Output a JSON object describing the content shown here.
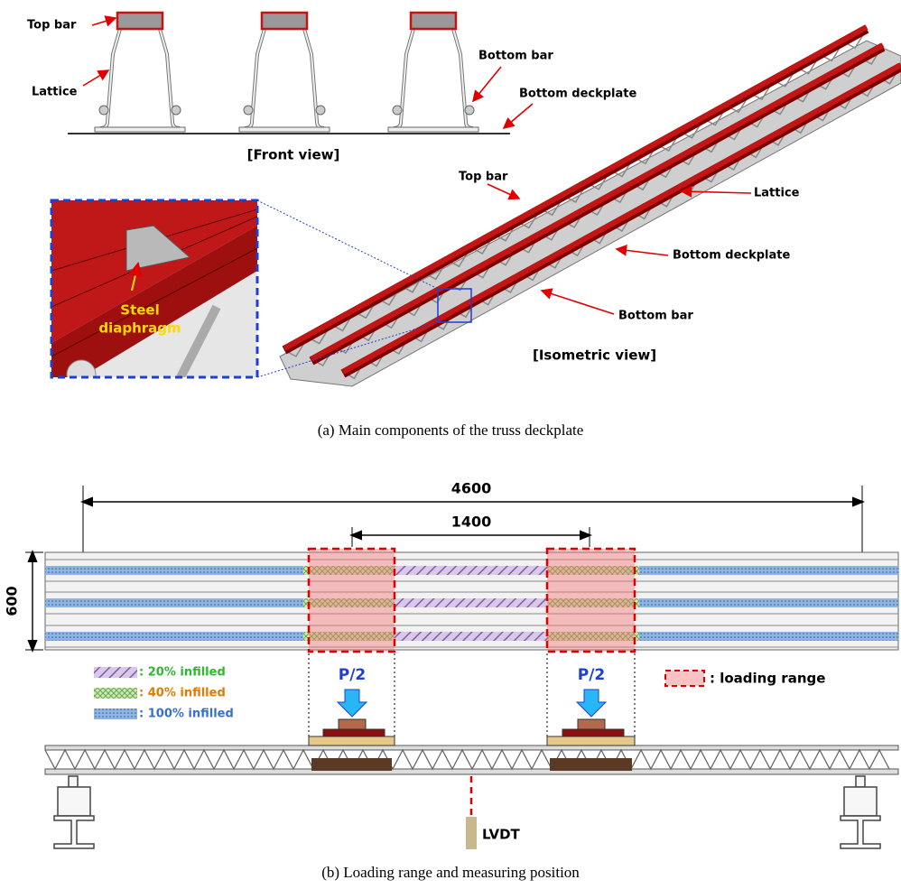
{
  "panel_a": {
    "front_labels": {
      "top_bar": "Top bar",
      "lattice": "Lattice",
      "bottom_bar": "Bottom bar",
      "bottom_deckplate": "Bottom deckplate"
    },
    "front_title": "[Front view]",
    "iso_labels": {
      "top_bar": "Top bar",
      "lattice": "Lattice",
      "bottom_deckplate": "Bottom deckplate",
      "bottom_bar": "Bottom bar"
    },
    "iso_title": "[Isometric view]",
    "detail_label": [
      "Steel",
      "diaphragm"
    ],
    "caption": "(a) Main components of the truss deckplate"
  },
  "panel_b": {
    "dimensions": {
      "total_length": 4600,
      "loading_spacing": 1400,
      "width": 600
    },
    "legend": [
      ": 20% infilled",
      ": 40% infilled",
      ": 100% infilled"
    ],
    "load_labels": [
      "P/2",
      "P/2"
    ],
    "loading_range_label": ": loading range",
    "sensor_label": "LVDT",
    "caption": "(b) Loading range and measuring position"
  }
}
